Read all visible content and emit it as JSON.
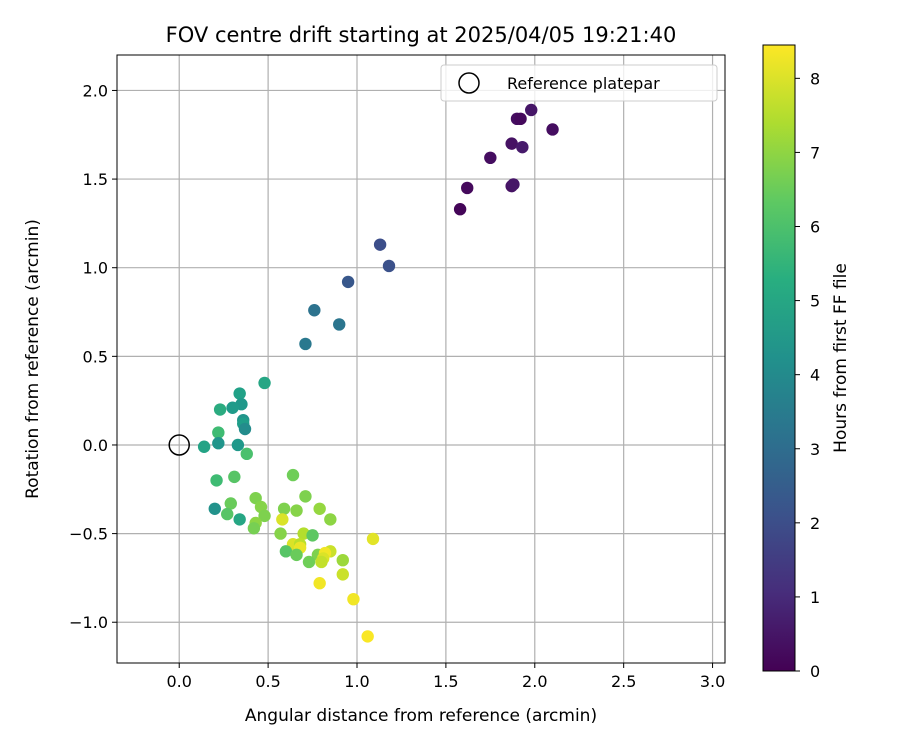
{
  "chart_data": {
    "type": "scatter",
    "title": "FOV centre drift starting at 2025/04/05 19:21:40",
    "xlabel": "Angular distance from reference (arcmin)",
    "ylabel": "Rotation from reference (arcmin)",
    "xlim": [
      -0.35,
      3.07
    ],
    "ylim": [
      -1.23,
      2.2
    ],
    "xticks": [
      0.0,
      0.5,
      1.0,
      1.5,
      2.0,
      2.5,
      3.0
    ],
    "xtick_labels": [
      "0.0",
      "0.5",
      "1.0",
      "1.5",
      "2.0",
      "2.5",
      "3.0"
    ],
    "yticks": [
      -1.0,
      -0.5,
      0.0,
      0.5,
      1.0,
      1.5,
      2.0
    ],
    "ytick_labels": [
      "−1.0",
      "−0.5",
      "0.0",
      "0.5",
      "1.0",
      "1.5",
      "2.0"
    ],
    "grid": true,
    "legend": {
      "position": "top-right",
      "label": "Reference platepar"
    },
    "reference_point": {
      "x": 0.0,
      "y": 0.0
    },
    "colorbar": {
      "label": "Hours from first FF file",
      "min": 0,
      "max": 8.45,
      "ticks": [
        0,
        1,
        2,
        3,
        4,
        5,
        6,
        7,
        8
      ],
      "tick_labels": [
        "0",
        "1",
        "2",
        "3",
        "4",
        "5",
        "6",
        "7",
        "8"
      ],
      "colormap": "viridis"
    },
    "points": [
      {
        "x": 1.58,
        "y": 1.33,
        "c": 0.1
      },
      {
        "x": 1.62,
        "y": 1.45,
        "c": 0.2
      },
      {
        "x": 1.75,
        "y": 1.62,
        "c": 0.3
      },
      {
        "x": 1.87,
        "y": 1.46,
        "c": 0.4
      },
      {
        "x": 1.88,
        "y": 1.47,
        "c": 0.5
      },
      {
        "x": 1.87,
        "y": 1.7,
        "c": 0.4
      },
      {
        "x": 1.9,
        "y": 1.84,
        "c": 0.3
      },
      {
        "x": 1.92,
        "y": 1.84,
        "c": 0.2
      },
      {
        "x": 1.93,
        "y": 1.68,
        "c": 0.6
      },
      {
        "x": 1.98,
        "y": 1.89,
        "c": 0.5
      },
      {
        "x": 2.1,
        "y": 1.78,
        "c": 0.3
      },
      {
        "x": 1.13,
        "y": 1.13,
        "c": 2.0
      },
      {
        "x": 1.18,
        "y": 1.01,
        "c": 2.1
      },
      {
        "x": 0.95,
        "y": 0.92,
        "c": 2.3
      },
      {
        "x": 0.76,
        "y": 0.76,
        "c": 3.2
      },
      {
        "x": 0.9,
        "y": 0.68,
        "c": 3.3
      },
      {
        "x": 0.71,
        "y": 0.57,
        "c": 3.4
      },
      {
        "x": 0.48,
        "y": 0.35,
        "c": 5.0
      },
      {
        "x": 0.34,
        "y": 0.29,
        "c": 4.8
      },
      {
        "x": 0.35,
        "y": 0.23,
        "c": 4.5
      },
      {
        "x": 0.3,
        "y": 0.21,
        "c": 4.6
      },
      {
        "x": 0.23,
        "y": 0.2,
        "c": 5.2
      },
      {
        "x": 0.36,
        "y": 0.14,
        "c": 4.4
      },
      {
        "x": 0.36,
        "y": 0.12,
        "c": 4.7
      },
      {
        "x": 0.37,
        "y": 0.09,
        "c": 4.1
      },
      {
        "x": 0.22,
        "y": 0.07,
        "c": 5.8
      },
      {
        "x": 0.22,
        "y": 0.01,
        "c": 4.4
      },
      {
        "x": 0.33,
        "y": 0.0,
        "c": 4.5
      },
      {
        "x": 0.14,
        "y": -0.01,
        "c": 4.9
      },
      {
        "x": 0.38,
        "y": -0.05,
        "c": 6.0
      },
      {
        "x": 0.21,
        "y": -0.2,
        "c": 5.8
      },
      {
        "x": 0.31,
        "y": -0.18,
        "c": 6.2
      },
      {
        "x": 0.64,
        "y": -0.17,
        "c": 6.6
      },
      {
        "x": 0.71,
        "y": -0.29,
        "c": 6.8
      },
      {
        "x": 0.43,
        "y": -0.3,
        "c": 6.8
      },
      {
        "x": 0.29,
        "y": -0.33,
        "c": 6.5
      },
      {
        "x": 0.46,
        "y": -0.35,
        "c": 6.9
      },
      {
        "x": 0.2,
        "y": -0.36,
        "c": 4.3
      },
      {
        "x": 0.59,
        "y": -0.36,
        "c": 6.8
      },
      {
        "x": 0.66,
        "y": -0.37,
        "c": 6.9
      },
      {
        "x": 0.79,
        "y": -0.36,
        "c": 7.1
      },
      {
        "x": 0.27,
        "y": -0.39,
        "c": 6.2
      },
      {
        "x": 0.48,
        "y": -0.4,
        "c": 6.8
      },
      {
        "x": 0.34,
        "y": -0.42,
        "c": 5.0
      },
      {
        "x": 0.85,
        "y": -0.42,
        "c": 7.0
      },
      {
        "x": 0.58,
        "y": -0.42,
        "c": 8.0
      },
      {
        "x": 0.43,
        "y": -0.44,
        "c": 7.0
      },
      {
        "x": 0.42,
        "y": -0.47,
        "c": 6.7
      },
      {
        "x": 0.57,
        "y": -0.5,
        "c": 6.9
      },
      {
        "x": 0.7,
        "y": -0.5,
        "c": 7.5
      },
      {
        "x": 0.75,
        "y": -0.51,
        "c": 6.3
      },
      {
        "x": 1.09,
        "y": -0.53,
        "c": 8.1
      },
      {
        "x": 0.64,
        "y": -0.56,
        "c": 8.0
      },
      {
        "x": 0.68,
        "y": -0.56,
        "c": 7.6
      },
      {
        "x": 0.68,
        "y": -0.58,
        "c": 8.2
      },
      {
        "x": 0.6,
        "y": -0.6,
        "c": 6.2
      },
      {
        "x": 0.85,
        "y": -0.6,
        "c": 7.8
      },
      {
        "x": 0.66,
        "y": -0.62,
        "c": 6.5
      },
      {
        "x": 0.78,
        "y": -0.62,
        "c": 6.8
      },
      {
        "x": 0.82,
        "y": -0.61,
        "c": 8.3
      },
      {
        "x": 0.81,
        "y": -0.64,
        "c": 8.0
      },
      {
        "x": 0.8,
        "y": -0.66,
        "c": 7.7
      },
      {
        "x": 0.73,
        "y": -0.66,
        "c": 6.6
      },
      {
        "x": 0.92,
        "y": -0.65,
        "c": 7.2
      },
      {
        "x": 0.92,
        "y": -0.73,
        "c": 7.8
      },
      {
        "x": 0.79,
        "y": -0.78,
        "c": 8.3
      },
      {
        "x": 0.98,
        "y": -0.87,
        "c": 8.3
      },
      {
        "x": 1.06,
        "y": -1.08,
        "c": 8.4
      }
    ]
  }
}
